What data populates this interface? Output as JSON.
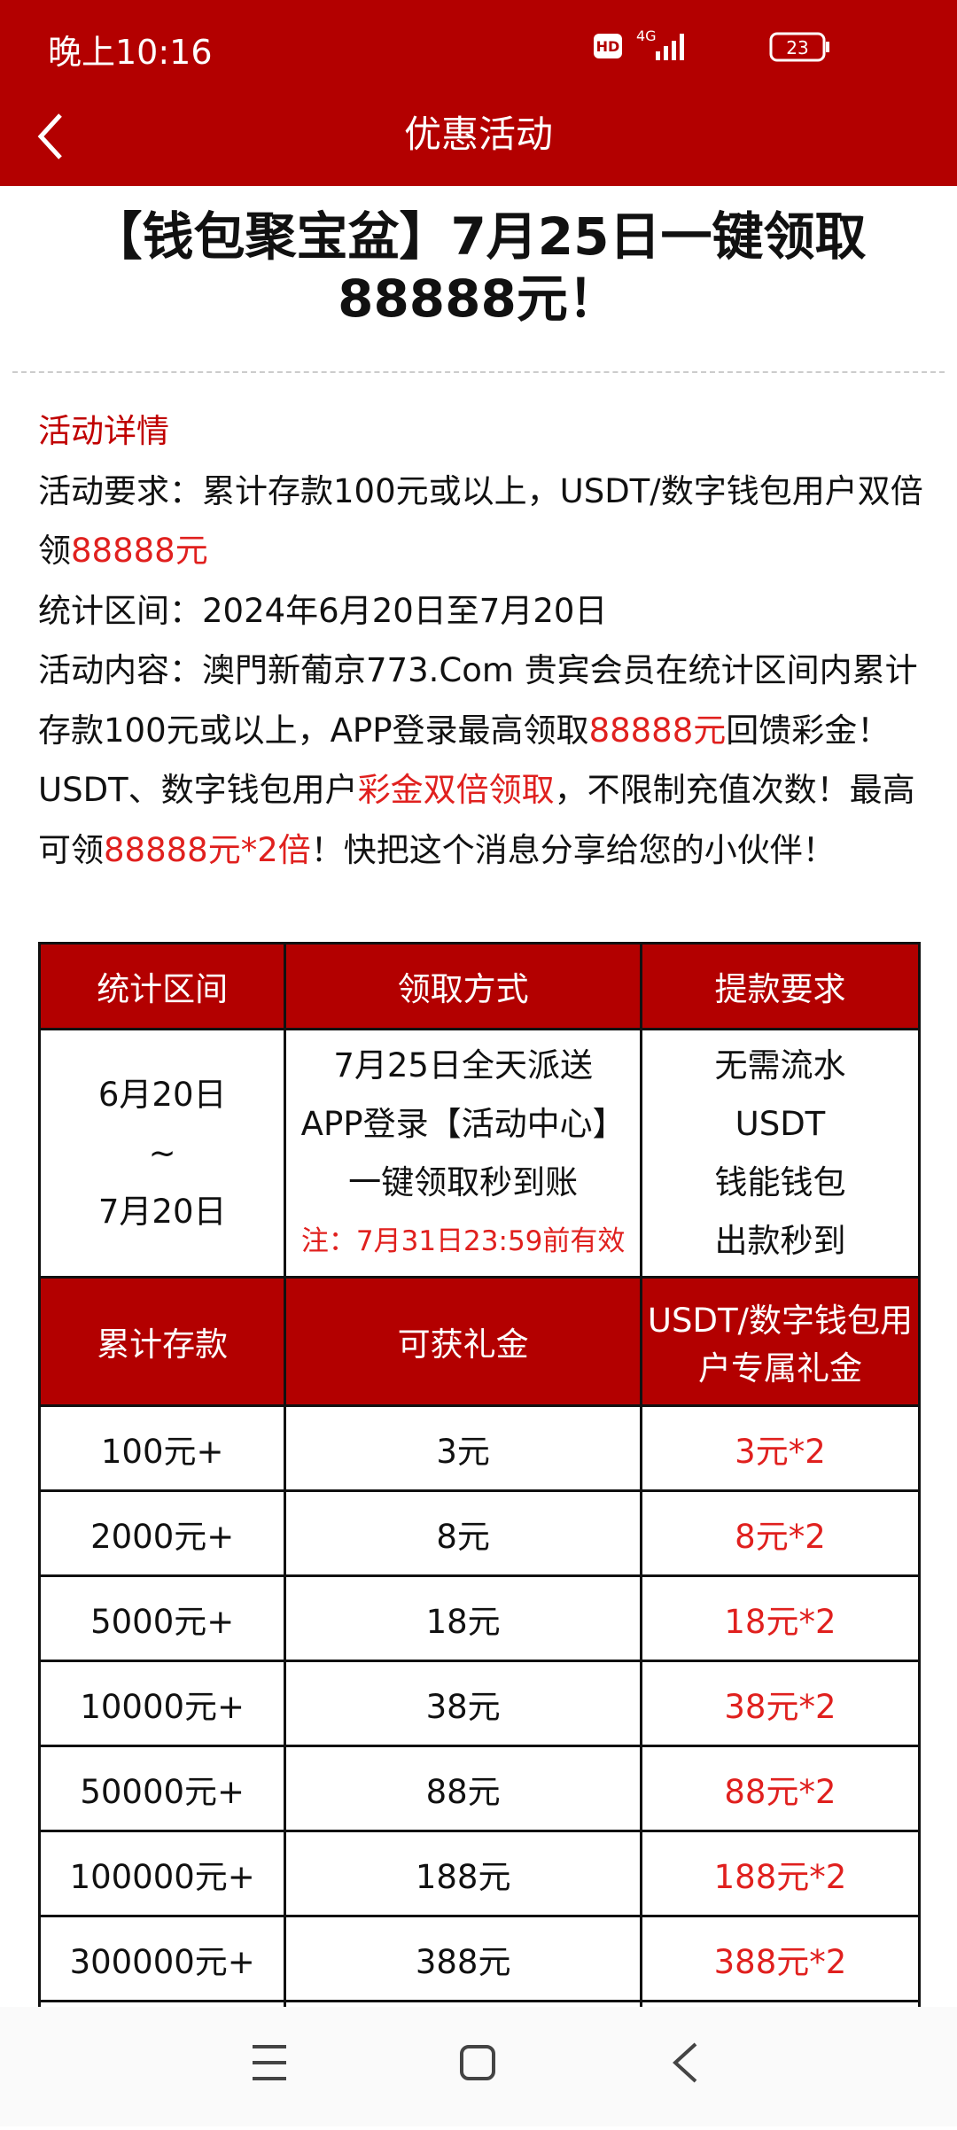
{
  "status_bar": {
    "time": "晚上10:16",
    "hd": "HD",
    "network": "4G",
    "battery": "23"
  },
  "nav": {
    "title": "优惠活动"
  },
  "article": {
    "title": "【钱包聚宝盆】7月25日一键领取88888元！",
    "section": "活动详情",
    "paragraphs": [
      {
        "runs": [
          {
            "text": "活动要求：累计存款100元或以上，USDT/数字钱包用户双倍领"
          },
          {
            "text": "88888元",
            "emphasis": true
          }
        ]
      },
      {
        "runs": [
          {
            "text": "统计区间：2024年6月20日至7月20日"
          }
        ]
      },
      {
        "runs": [
          {
            "text": "活动内容：澳門新葡京773.Com 贵宾会员在统计区间内累计存款100元或以上，APP登录最高领取"
          },
          {
            "text": "88888元",
            "emphasis": true
          },
          {
            "text": "回馈彩金！USDT、数字钱包用户"
          },
          {
            "text": "彩金双倍领取",
            "emphasis": true
          },
          {
            "text": "，不限制充值次数！最高可领"
          },
          {
            "text": "88888元*2倍",
            "emphasis": true
          },
          {
            "text": "！快把这个消息分享给您的小伙伴！"
          }
        ]
      }
    ]
  },
  "table": {
    "header": [
      "统计区间",
      "领取方式",
      "提款要求"
    ],
    "info": [
      [
        "6月20日",
        "~",
        "7月20日"
      ],
      [
        "7月25日全天派送",
        "APP登录【活动中心】",
        "一键领取秒到账"
      ],
      [
        "无需流水",
        "USDT",
        "钱能钱包",
        "出款秒到"
      ]
    ],
    "note": "注：7月31日23:59前有效",
    "header2": [
      "累计存款",
      "可获礼金",
      "USDT/数字钱包用户专属礼金"
    ],
    "rows": [
      [
        "100元+",
        "3元",
        "3元*2"
      ],
      [
        "2000元+",
        "8元",
        "8元*2"
      ],
      [
        "5000元+",
        "18元",
        "18元*2"
      ],
      [
        "10000元+",
        "38元",
        "38元*2"
      ],
      [
        "50000元+",
        "88元",
        "88元*2"
      ],
      [
        "100000元+",
        "188元",
        "188元*2"
      ],
      [
        "300000元+",
        "388元",
        "388元*2"
      ]
    ]
  }
}
